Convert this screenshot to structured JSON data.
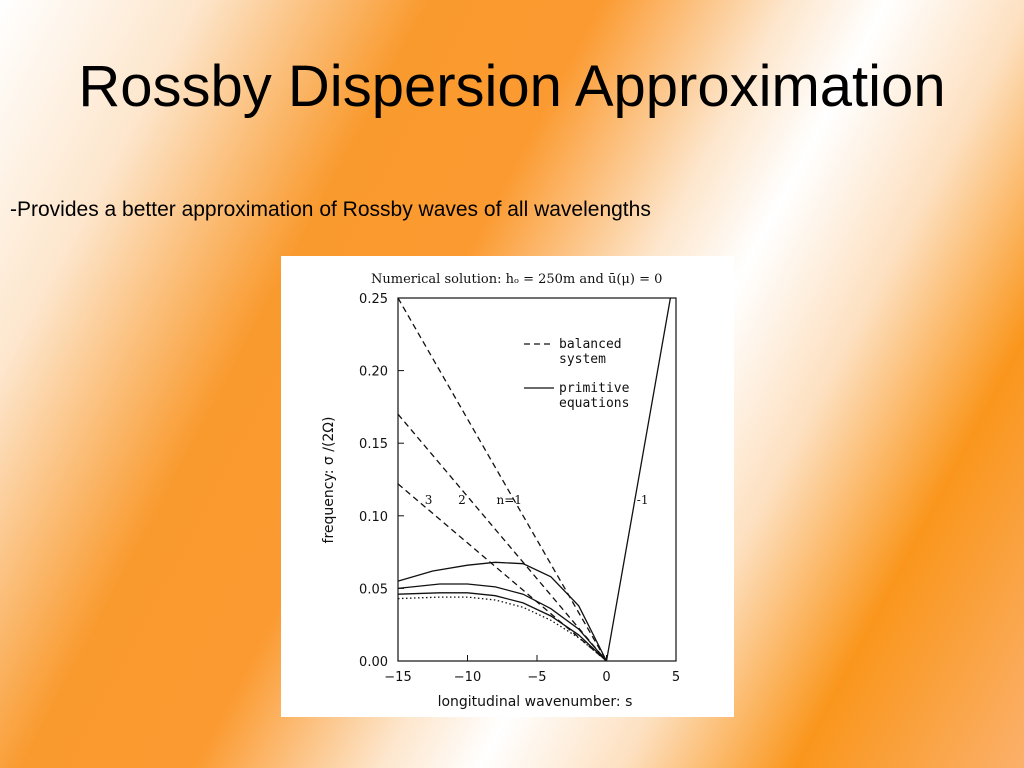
{
  "slide": {
    "title": "Rossby Dispersion Approximation",
    "bullet": "-Provides a better approximation of Rossby waves of all wavelengths"
  },
  "chart_data": {
    "type": "line",
    "title": "Numerical solution: hₒ = 250m and ū(μ) = 0",
    "xlabel": "longitudinal wavenumber: s",
    "ylabel": "frequency: σ /(2Ω)",
    "xlim": [
      -15,
      5
    ],
    "ylim": [
      0,
      0.25
    ],
    "x_ticks": [
      -15,
      -10,
      -5,
      0,
      5
    ],
    "x_tick_labels": [
      "−15",
      "−10",
      "−5",
      "0",
      "5"
    ],
    "y_ticks": [
      0,
      0.05,
      0.1,
      0.15,
      0.2,
      0.25
    ],
    "y_tick_labels": [
      "0.00",
      "0.05",
      "0.10",
      "0.15",
      "0.20",
      "0.25"
    ],
    "grid": false,
    "legend": {
      "placement": "top-right",
      "entries": [
        {
          "style": "dashed",
          "label_lines": [
            "balanced",
            "system"
          ]
        },
        {
          "style": "solid",
          "label_lines": [
            "primitive",
            "equations"
          ]
        }
      ]
    },
    "annotations": [
      {
        "text": "3",
        "x": -12.8,
        "y": 0.108
      },
      {
        "text": "2",
        "x": -10.4,
        "y": 0.108
      },
      {
        "text": "n=1",
        "x": -7.0,
        "y": 0.108
      },
      {
        "text": "-1",
        "x": 2.6,
        "y": 0.108
      }
    ],
    "series": [
      {
        "label": "n=1",
        "style": "dashed",
        "x": [
          -15,
          0
        ],
        "y": [
          0.25,
          0
        ]
      },
      {
        "label": "n=2",
        "style": "dashed",
        "x": [
          -15,
          0
        ],
        "y": [
          0.17,
          0
        ]
      },
      {
        "label": "n=3",
        "style": "dashed",
        "x": [
          -15,
          0
        ],
        "y": [
          0.122,
          0
        ]
      },
      {
        "label": "-1",
        "style": "solid",
        "x": [
          0,
          4.6
        ],
        "y": [
          0,
          0.25
        ]
      },
      {
        "label": "n=1",
        "style": "solid",
        "x": [
          -15,
          -12.5,
          -10,
          -8,
          -6,
          -4,
          -2,
          0
        ],
        "y": [
          0.055,
          0.062,
          0.066,
          0.068,
          0.067,
          0.058,
          0.038,
          0
        ]
      },
      {
        "label": "n=2",
        "style": "solid",
        "x": [
          -15,
          -12,
          -10,
          -8,
          -6,
          -4,
          -2,
          0
        ],
        "y": [
          0.05,
          0.053,
          0.053,
          0.051,
          0.046,
          0.036,
          0.022,
          0
        ]
      },
      {
        "label": "n=3",
        "style": "solid",
        "x": [
          -15,
          -12,
          -10,
          -8,
          -6,
          -4,
          -2,
          0
        ],
        "y": [
          0.046,
          0.047,
          0.047,
          0.045,
          0.04,
          0.031,
          0.018,
          0
        ]
      },
      {
        "label": "",
        "style": "dotted",
        "x": [
          -15,
          -12,
          -10,
          -8,
          -6,
          -4,
          -2,
          0
        ],
        "y": [
          0.043,
          0.044,
          0.044,
          0.042,
          0.037,
          0.028,
          0.016,
          0
        ]
      }
    ]
  }
}
